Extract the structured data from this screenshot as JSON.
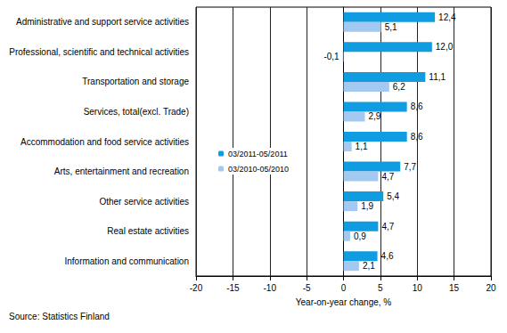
{
  "chart_data": {
    "type": "bar",
    "orientation": "horizontal",
    "categories": [
      "Administrative and support service activities",
      "Professional, scientific and technical activities",
      "Transportation and storage",
      "Services, total(excl. Trade)",
      "Accommodation and food service activities",
      "Arts, entertainment and recreation",
      "Other service activities",
      "Real estate activities",
      "Information and communication"
    ],
    "series": [
      {
        "name": "03/2011-05/2011",
        "color": "#0f9ce0",
        "values": [
          12.4,
          12.0,
          11.1,
          8.6,
          8.6,
          7.7,
          5.4,
          4.7,
          4.6
        ],
        "value_labels": [
          "12,4",
          "12,0",
          "11,1",
          "8,6",
          "8,6",
          "7,7",
          "5,4",
          "4,7",
          "4,6"
        ]
      },
      {
        "name": "03/2010-05/2010",
        "color": "#a3c9f0",
        "values": [
          5.1,
          -0.1,
          6.2,
          2.9,
          1.1,
          4.7,
          1.9,
          0.9,
          2.1
        ],
        "value_labels": [
          "5,1",
          "-0,1",
          "6,2",
          "2,9",
          "1,1",
          "4,7",
          "1,9",
          "0,9",
          "2,1"
        ]
      }
    ],
    "xlabel": "Year-on-year change, %",
    "xlim": [
      -20,
      20
    ],
    "xticks": [
      -20,
      -15,
      -10,
      -5,
      0,
      5,
      10,
      15,
      20
    ],
    "grid": true,
    "legend": "left",
    "data_labels": true,
    "annotations": [
      "Source: Statistics Finland"
    ]
  }
}
